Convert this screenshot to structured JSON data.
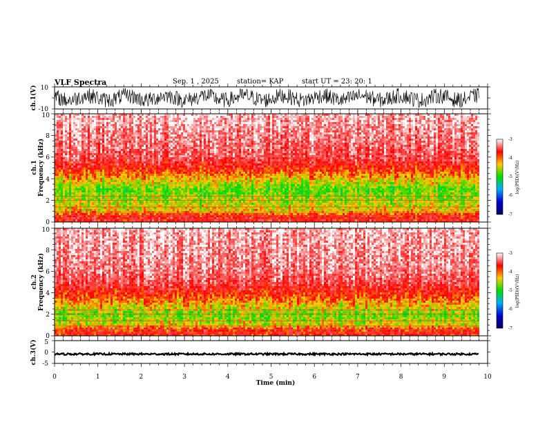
{
  "header": {
    "title": "VLF Spectra",
    "date": "Sep. 1 , 2025",
    "station": "station= KAP",
    "start": "start UT =   23: 20: 1"
  },
  "colorbar": {
    "label": "log(PSD)(V²/Hz)",
    "ticks": [
      -3,
      -4,
      -5,
      -6,
      -7
    ],
    "colors": [
      "#ffffff",
      "#ff0000",
      "#ffcc00",
      "#00dd00",
      "#00aaff",
      "#0000cc",
      "#000060"
    ]
  },
  "chart_data": [
    {
      "type": "line",
      "name": "ch.1 waveform",
      "ylabel": "ch.1(V)",
      "ylim": [
        -10,
        10
      ],
      "yticks": [
        "10",
        "-10"
      ],
      "xlim": [
        0,
        10
      ],
      "description_values": "continuous noisy waveform between about -9 and 9 V over 0 to 9.8 min"
    },
    {
      "type": "heatmap",
      "name": "ch.1 spectrogram",
      "ylabel": "ch.1\nFrequency (kHz)",
      "ylim": [
        0,
        10
      ],
      "yticks": [
        "0",
        "2",
        "4",
        "6",
        "8",
        "10"
      ],
      "xlim": [
        0,
        10
      ],
      "data_end_min": 9.8,
      "band_profile_khz": [
        {
          "f": 0.5,
          "level": -3.9
        },
        {
          "f": 1.0,
          "level": -4.6
        },
        {
          "f": 2.0,
          "level": -4.9
        },
        {
          "f": 3.0,
          "level": -5.1
        },
        {
          "f": 4.0,
          "level": -4.6
        },
        {
          "f": 5.0,
          "level": -4.0
        },
        {
          "f": 6.0,
          "level": -3.6
        },
        {
          "f": 8.0,
          "level": -3.4
        },
        {
          "f": 10.0,
          "level": -3.2
        }
      ]
    },
    {
      "type": "heatmap",
      "name": "ch.2 spectrogram",
      "ylabel": "ch.2\nFrequency (kHz)",
      "ylim": [
        0,
        10
      ],
      "yticks": [
        "0",
        "2",
        "4",
        "6",
        "8",
        "10"
      ],
      "xlim": [
        0,
        10
      ],
      "data_end_min": 9.8,
      "band_profile_khz": [
        {
          "f": 0.5,
          "level": -4.0
        },
        {
          "f": 1.0,
          "level": -4.7
        },
        {
          "f": 2.0,
          "level": -5.0
        },
        {
          "f": 3.0,
          "level": -4.5
        },
        {
          "f": 4.0,
          "level": -4.0
        },
        {
          "f": 5.0,
          "level": -3.6
        },
        {
          "f": 6.0,
          "level": -3.4
        },
        {
          "f": 8.0,
          "level": -3.3
        },
        {
          "f": 10.0,
          "level": -3.2
        }
      ]
    },
    {
      "type": "line",
      "name": "ch.3 waveform",
      "ylabel": "ch.3(V)",
      "ylim": [
        -5,
        5
      ],
      "yticks": [
        "5",
        "0",
        "-5"
      ],
      "xlim": [
        0,
        10
      ],
      "mean_value": -0.9
    }
  ],
  "xaxis": {
    "title": "Time (min)",
    "ticks": [
      "0",
      "1",
      "2",
      "3",
      "4",
      "5",
      "6",
      "7",
      "8",
      "9",
      "10"
    ]
  }
}
